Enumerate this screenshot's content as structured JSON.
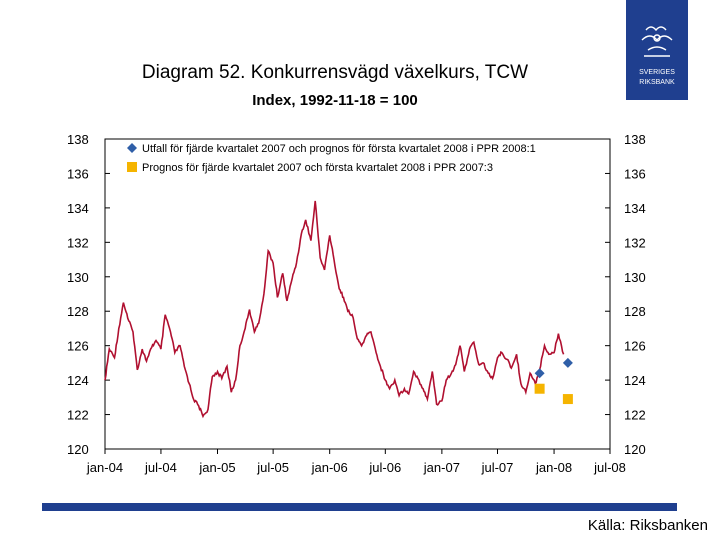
{
  "title": "Diagram 52. Konkurrensvägd växelkurs, TCW",
  "subtitle": "Index, 1992-11-18 = 100",
  "source": "Källa: Riksbanken",
  "logo": {
    "text_lines": [
      "SVERIGES",
      "RIKSBANK"
    ],
    "color": "#1f3f8f"
  },
  "colors": {
    "line": "#b01030",
    "diamond": "#2f5fa8",
    "square": "#f5b400",
    "brand": "#1f3f8f"
  },
  "chart_data": {
    "type": "line",
    "title": "Diagram 52. Konkurrensvägd växelkurs, TCW",
    "subtitle": "Index, 1992-11-18 = 100",
    "xlabel": "",
    "ylabel": "",
    "ylim": [
      120,
      138
    ],
    "yticks": [
      120,
      122,
      124,
      126,
      128,
      130,
      132,
      134,
      136,
      138
    ],
    "xlim": [
      "2004-01",
      "2008-07"
    ],
    "xticks": [
      "jan-04",
      "jul-04",
      "jan-05",
      "jul-05",
      "jan-06",
      "jul-06",
      "jan-07",
      "jul-07",
      "jan-08",
      "jul-08"
    ],
    "grid": false,
    "legend_position": "top-left",
    "series": [
      {
        "name": "",
        "kind": "line",
        "x": [
          "2004-01-01",
          "2004-01-15",
          "2004-02-01",
          "2004-02-15",
          "2004-03-01",
          "2004-03-15",
          "2004-04-01",
          "2004-04-15",
          "2004-05-01",
          "2004-05-15",
          "2004-06-01",
          "2004-06-15",
          "2004-07-01",
          "2004-07-15",
          "2004-08-01",
          "2004-08-15",
          "2004-09-01",
          "2004-09-15",
          "2004-10-01",
          "2004-10-15",
          "2004-11-01",
          "2004-11-15",
          "2004-12-01",
          "2004-12-15",
          "2005-01-01",
          "2005-01-15",
          "2005-02-01",
          "2005-02-15",
          "2005-03-01",
          "2005-03-15",
          "2005-04-01",
          "2005-04-15",
          "2005-05-01",
          "2005-05-15",
          "2005-06-01",
          "2005-06-15",
          "2005-07-01",
          "2005-07-15",
          "2005-08-01",
          "2005-08-15",
          "2005-09-01",
          "2005-09-15",
          "2005-10-01",
          "2005-10-15",
          "2005-11-01",
          "2005-11-15",
          "2005-12-01",
          "2005-12-15",
          "2006-01-01",
          "2006-01-15",
          "2006-02-01",
          "2006-02-15",
          "2006-03-01",
          "2006-03-15",
          "2006-04-01",
          "2006-04-15",
          "2006-05-01",
          "2006-05-15",
          "2006-06-01",
          "2006-06-15",
          "2006-07-01",
          "2006-07-15",
          "2006-08-01",
          "2006-08-15",
          "2006-09-01",
          "2006-09-15",
          "2006-10-01",
          "2006-10-15",
          "2006-11-01",
          "2006-11-15",
          "2006-12-01",
          "2006-12-15",
          "2007-01-01",
          "2007-01-15",
          "2007-02-01",
          "2007-02-15",
          "2007-03-01",
          "2007-03-15",
          "2007-04-01",
          "2007-04-15",
          "2007-05-01",
          "2007-05-15",
          "2007-06-01",
          "2007-06-15",
          "2007-07-01",
          "2007-07-15",
          "2007-08-01",
          "2007-08-15",
          "2007-09-01",
          "2007-09-15",
          "2007-10-01",
          "2007-10-15",
          "2007-11-01",
          "2007-11-15",
          "2007-12-01",
          "2007-12-15",
          "2008-01-01",
          "2008-01-15",
          "2008-02-01"
        ],
        "values": [
          124.0,
          125.8,
          125.3,
          127.0,
          128.5,
          127.6,
          126.8,
          124.6,
          125.8,
          125.1,
          125.9,
          126.3,
          125.8,
          127.8,
          126.8,
          125.6,
          126.0,
          124.8,
          123.8,
          122.9,
          122.5,
          121.9,
          122.3,
          124.2,
          124.5,
          124.1,
          124.8,
          123.3,
          124.0,
          126.0,
          127.0,
          128.1,
          126.8,
          127.3,
          129.0,
          131.5,
          130.8,
          128.8,
          130.2,
          128.6,
          129.9,
          130.8,
          132.5,
          133.3,
          132.1,
          134.4,
          131.1,
          130.4,
          132.4,
          131.0,
          129.3,
          128.8,
          128.0,
          127.8,
          126.4,
          126.0,
          126.6,
          126.8,
          125.6,
          124.8,
          124.0,
          123.5,
          124.0,
          123.1,
          123.5,
          123.2,
          124.5,
          124.1,
          123.5,
          122.9,
          124.5,
          122.6,
          122.8,
          124.0,
          124.4,
          124.9,
          126.0,
          124.5,
          125.8,
          126.2,
          124.9,
          125.0,
          124.4,
          124.1,
          125.3,
          125.6,
          125.2,
          124.7,
          125.5,
          123.8,
          123.3,
          124.4,
          123.8,
          124.6,
          126.0,
          125.5,
          125.6,
          126.7,
          125.5
        ]
      },
      {
        "name": "Utfall för fjärde kvartalet 2007 och prognos för första kvartalet 2008 i PPR 2008:1",
        "kind": "marker-diamond",
        "x": [
          "2007-11-15",
          "2008-02-15"
        ],
        "values": [
          124.4,
          125.0
        ]
      },
      {
        "name": "Prognos för fjärde kvartalet 2007 och första kvartalet 2008 i PPR 2007:3",
        "kind": "marker-square",
        "x": [
          "2007-11-15",
          "2008-02-15"
        ],
        "values": [
          123.5,
          122.9
        ]
      }
    ]
  }
}
